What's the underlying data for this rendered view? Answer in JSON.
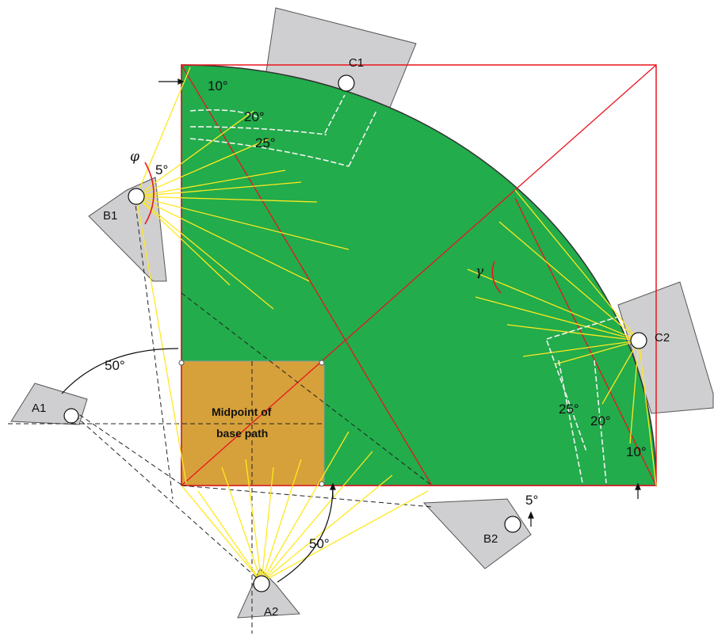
{
  "luminaires": {
    "a1": "A1",
    "a2": "A2",
    "b1": "B1",
    "b2": "B2",
    "c1": "C1",
    "c2": "C2"
  },
  "angles": {
    "a1_offset": "50°",
    "a2_offset": "50°",
    "b1_step": "5°",
    "b2_step": "5°",
    "c1_10": "10°",
    "c1_20": "20°",
    "c1_25": "25°",
    "c2_10": "10°",
    "c2_20": "20°",
    "c2_25": "25°"
  },
  "symbols": {
    "phi": "φ",
    "gamma": "γ"
  },
  "infield": {
    "line1": "Midpoint of",
    "line2": "base path"
  },
  "colors": {
    "field": "#22ac4b",
    "infield": "#d6a13a",
    "boundary": "#e8161e",
    "beam": "#ffe820",
    "mast": "#cfcfd1"
  }
}
